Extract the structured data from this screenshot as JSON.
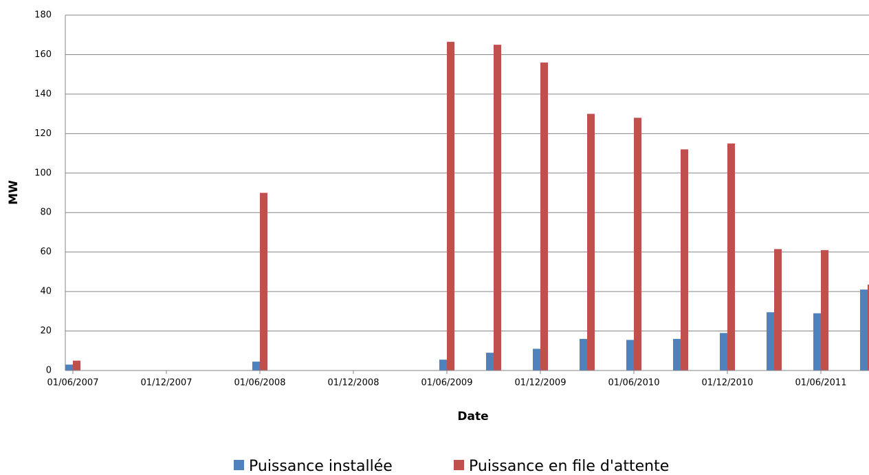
{
  "chart_data": {
    "type": "bar",
    "x_label": "Date",
    "y_label": "MW",
    "categories": [
      "01/06/2007",
      null,
      "01/12/2007",
      null,
      "01/06/2008",
      null,
      "01/12/2008",
      null,
      "01/06/2009",
      null,
      "01/12/2009",
      null,
      "01/06/2010",
      null,
      "01/12/2010",
      null,
      "01/06/2011",
      null
    ],
    "series": [
      {
        "name": "Puissance installée",
        "color": "#4f81bd",
        "values": [
          3,
          null,
          null,
          null,
          4.5,
          null,
          null,
          null,
          5.5,
          9,
          11,
          16,
          15.5,
          16,
          19,
          29.5,
          29,
          41
        ]
      },
      {
        "name": "Puissance en file d'attente",
        "color": "#c0504d",
        "values": [
          5,
          null,
          null,
          null,
          90,
          null,
          null,
          null,
          166.5,
          165,
          156,
          130,
          128,
          112,
          115,
          61.5,
          61,
          43.5
        ]
      }
    ],
    "ylim": [
      0,
      180
    ],
    "yticks": [
      0,
      20,
      40,
      60,
      80,
      100,
      120,
      140,
      160,
      180
    ],
    "grid": true,
    "legend": "bottom"
  }
}
